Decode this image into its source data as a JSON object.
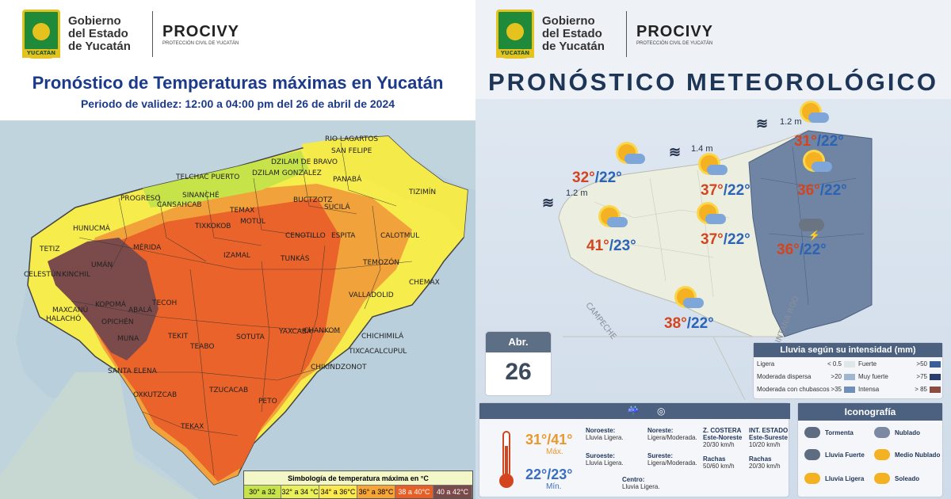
{
  "logo": {
    "seal_tag": "YUCATÁN",
    "gov_line1": "Gobierno",
    "gov_line2": "del Estado",
    "gov_line3": "de Yucatán",
    "brand": "PROCIVY",
    "brand_sub": "PROTECCIÓN CIVIL DE YUCATÁN"
  },
  "left": {
    "title": "Pronóstico de Temperaturas máximas en Yucatán",
    "subtitle": "Periodo de validez: 12:00 a 04:00 pm del 26 de abril de 2024",
    "legend_title": "Simbología de temperatura máxima en °C",
    "legend": [
      {
        "label": "30° a 32 °C",
        "color": "#c6e34a"
      },
      {
        "label": "32° a 34 °C",
        "color": "#e9f05a"
      },
      {
        "label": "34° a 36°C",
        "color": "#fbe94e"
      },
      {
        "label": "36° a 38°C",
        "color": "#f6a536"
      },
      {
        "label": "38 a 40°C",
        "color": "#e85f26"
      },
      {
        "label": "40 a 42°C",
        "color": "#7b4a4a"
      }
    ],
    "districts": [
      {
        "name": "RIO LAGARTOS"
      },
      {
        "name": "SAN FELIPE"
      },
      {
        "name": "DZILAM DE BRAVO"
      },
      {
        "name": "TELCHAC PUERTO"
      },
      {
        "name": "PROGRESO"
      },
      {
        "name": "DZILAM GONZALEZ"
      },
      {
        "name": "PANABÁ"
      },
      {
        "name": "TIZIMÍN"
      },
      {
        "name": "BUCTZOTZ"
      },
      {
        "name": "HUNUCMÁ"
      },
      {
        "name": "TEMAX"
      },
      {
        "name": "SUCILÁ"
      },
      {
        "name": "TETIZ"
      },
      {
        "name": "MÉRIDA"
      },
      {
        "name": "CENOTILLO"
      },
      {
        "name": "ESPITA"
      },
      {
        "name": "CALOTMUL"
      },
      {
        "name": "CELESTÚN"
      },
      {
        "name": "KINCHIL"
      },
      {
        "name": "UMÁN"
      },
      {
        "name": "IZAMAL"
      },
      {
        "name": "TUNKÁS"
      },
      {
        "name": "TEMOZÓN"
      },
      {
        "name": "CHEMAX"
      },
      {
        "name": "MAXCANÚ"
      },
      {
        "name": "KOPOMÁ"
      },
      {
        "name": "ABALÁ"
      },
      {
        "name": "TECOH"
      },
      {
        "name": "VALLADOLID"
      },
      {
        "name": "HALACHÓ"
      },
      {
        "name": "OPICHÉN"
      },
      {
        "name": "TEKIT"
      },
      {
        "name": "SOTUTA"
      },
      {
        "name": "YAXCABÁ"
      },
      {
        "name": "MUNA"
      },
      {
        "name": "TEABO"
      },
      {
        "name": "CHIKINDZONOT"
      },
      {
        "name": "SANTA ELENA"
      },
      {
        "name": "OXKUTZCAB"
      },
      {
        "name": "TZUCACAB"
      },
      {
        "name": "PETO"
      },
      {
        "name": "TEKAX"
      },
      {
        "name": "TIXKOKOB"
      },
      {
        "name": "MOTUL"
      },
      {
        "name": "CHANKOM"
      },
      {
        "name": "CHICHIMILÁ"
      },
      {
        "name": "TIXCACALCUPUL"
      },
      {
        "name": "CANSAHCAB"
      },
      {
        "name": "SINANCHÉ"
      }
    ]
  },
  "right": {
    "title": "PRONÓSTICO METEOROLÓGICO",
    "waves": [
      "1.2 m",
      "1.4 m",
      "1.2 m"
    ],
    "forecasts": [
      {
        "max": "32°",
        "min": "/22°"
      },
      {
        "max": "41°",
        "min": "/23°"
      },
      {
        "max": "37°",
        "min": "/22°"
      },
      {
        "max": "37°",
        "min": "/22°"
      },
      {
        "max": "38°",
        "min": "/22°"
      },
      {
        "max": "31°",
        "min": "/22°"
      },
      {
        "max": "36°",
        "min": "/22°"
      },
      {
        "max": "36°",
        "min": "/22°"
      }
    ],
    "state_labels": {
      "campeche": "CAMPECHE",
      "qroo": "QUINTANA ROO"
    },
    "date": {
      "month": "Abr.",
      "day": "26"
    },
    "rain_legend": {
      "title": "Lluvia según su intensidad",
      "unit": "(mm)",
      "rows": [
        {
          "label": "Ligera",
          "value": "< 0.5",
          "color": "#dfe8e6"
        },
        {
          "label": "Moderada dispersa",
          "value": ">20",
          "color": "#9fb6cf"
        },
        {
          "label": "Moderada con chubascos",
          "value": ">35",
          "color": "#6f8fb7"
        },
        {
          "label": "Fuerte",
          "value": ">50",
          "color": "#3a5f97"
        },
        {
          "label": "Muy fuerte",
          "value": ">75",
          "color": "#2a3d6b"
        },
        {
          "label": "Intensa",
          "value": "> 85",
          "color": "#8a4d3f"
        }
      ]
    },
    "summary": {
      "temp_max": "31°/41°",
      "max_label": "Máx.",
      "temp_min": "22°/23°",
      "min_label": "Mín.",
      "regions": [
        {
          "name": "Noroeste:",
          "text": "Lluvia Ligera."
        },
        {
          "name": "Noreste:",
          "text": "Ligera/Moderada."
        },
        {
          "name": "Suroeste:",
          "text": "Lluvia Ligera."
        },
        {
          "name": "Sureste:",
          "text": "Ligera/Moderada."
        },
        {
          "name": "Centro:",
          "text": "Lluvia Ligera."
        }
      ],
      "wind": {
        "costera_title": "Z. COSTERA",
        "costera_dir": "Este-Noreste",
        "costera_speed": "20/30 km/h",
        "costera_gust_label": "Rachas",
        "costera_gust": "50/60 km/h",
        "int_title": "INT. ESTADO",
        "int_dir": "Este-Sureste",
        "int_speed": "10/20 km/h",
        "int_gust_label": "Rachas",
        "int_gust": "20/30 km/h"
      }
    },
    "iconography": {
      "title": "Iconografía",
      "items": [
        {
          "label": "Tormenta",
          "icon": "storm-icon"
        },
        {
          "label": "Nublado",
          "icon": "cloud-icon"
        },
        {
          "label": "Lluvia Fuerte",
          "icon": "heavy-rain-icon"
        },
        {
          "label": "Medio Nublado",
          "icon": "partly-cloudy-icon"
        },
        {
          "label": "Lluvia Ligera",
          "icon": "light-rain-icon"
        },
        {
          "label": "Soleado",
          "icon": "sun-icon"
        }
      ]
    }
  }
}
